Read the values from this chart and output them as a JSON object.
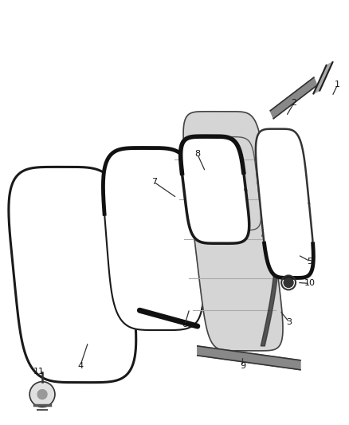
{
  "background_color": "#ffffff",
  "fig_width": 4.38,
  "fig_height": 5.33,
  "dpi": 100,
  "line_dark": "#222222",
  "line_mid": "#555555",
  "line_light": "#888888",
  "fill_white": "#ffffff",
  "fill_door": "#d8d8d8",
  "fill_strip": "#aaaaaa"
}
